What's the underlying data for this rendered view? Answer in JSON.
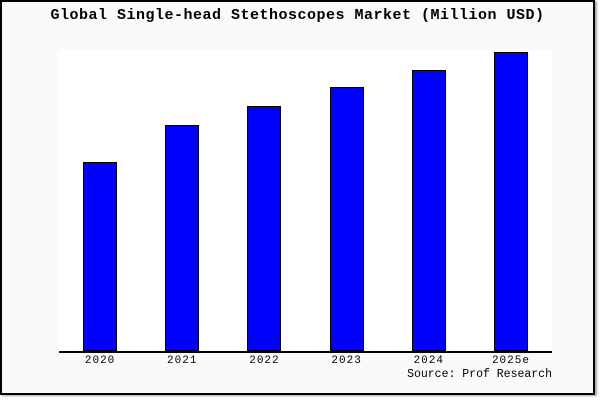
{
  "title": "Global Single-head Stethoscopes Market (Million USD)",
  "source_note": "Source: Prof Research",
  "colors": {
    "bar_fill": "#0000ff",
    "bar_border": "#000000",
    "canvas_background": "#fafafa",
    "plot_background": "#ffffff",
    "frame_border": "#000000",
    "text": "#000000"
  },
  "chart_data": {
    "type": "bar",
    "title": "Global Single-head Stethoscopes Market (Million USD)",
    "categories": [
      "2020",
      "2021",
      "2022",
      "2023",
      "2024",
      "2025e"
    ],
    "series": [
      {
        "name": "Global Single-head Stethoscopes Market",
        "values": [
          63,
          75.5,
          81.8,
          88,
          94,
          100
        ]
      }
    ],
    "value_note": "y-axis is unlabeled; values are relative units estimated from bar heights, tallest bar (2025e) = 100",
    "xlabel": "",
    "ylabel": "",
    "ylim": [
      0,
      100.5
    ],
    "grid": false,
    "legend_position": "none",
    "annotations": [
      "Source: Prof Research"
    ]
  }
}
